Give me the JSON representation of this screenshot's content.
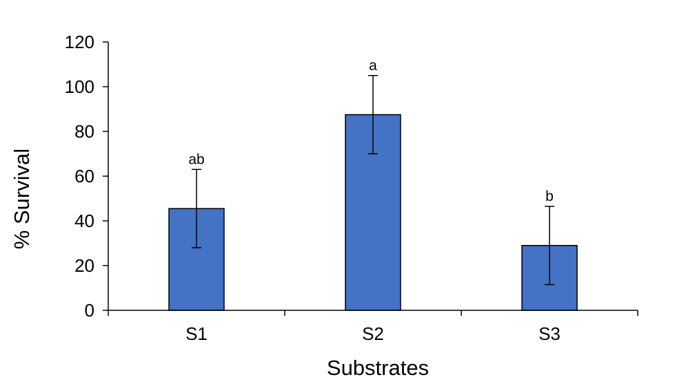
{
  "chart_data": {
    "type": "bar",
    "title": "",
    "xlabel": "Substrates",
    "ylabel": "% Survival",
    "categories": [
      "S1",
      "S2",
      "S3"
    ],
    "values": [
      45.5,
      87.5,
      29
    ],
    "error": [
      17.5,
      17.5,
      17.5
    ],
    "significance_labels": [
      "ab",
      "a",
      "b"
    ],
    "ylim": [
      0,
      120
    ],
    "yticks": [
      0,
      20,
      40,
      60,
      80,
      100,
      120
    ],
    "ytick_labels": [
      "0",
      "20",
      "40",
      "60",
      "80",
      "100",
      "120"
    ],
    "grid": false,
    "legend": "none",
    "bar_color": "#4472C4",
    "bar_edge_color": "#000000"
  }
}
